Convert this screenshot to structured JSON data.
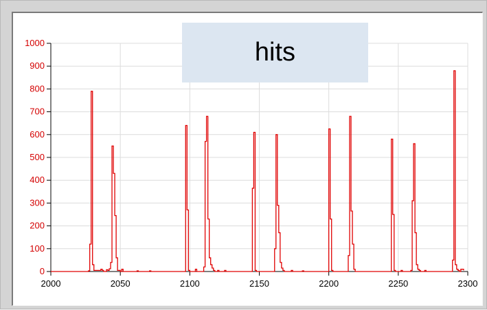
{
  "window": {
    "chart_title": "",
    "overlay_label": "hits"
  },
  "chart_data": {
    "type": "line",
    "title": "",
    "xlabel": "",
    "ylabel": "",
    "xlim": [
      2000,
      2300
    ],
    "ylim": [
      0,
      1000
    ],
    "xticks": [
      2000,
      2050,
      2100,
      2150,
      2200,
      2250,
      2300
    ],
    "yticks": [
      0,
      100,
      200,
      300,
      400,
      500,
      600,
      700,
      800,
      900,
      1000
    ],
    "grid": true,
    "step": true,
    "series": [
      {
        "color": "#e00000",
        "points": [
          [
            2000,
            0
          ],
          [
            2026,
            0
          ],
          [
            2027,
            3
          ],
          [
            2028,
            120
          ],
          [
            2029,
            790
          ],
          [
            2030,
            30
          ],
          [
            2031,
            5
          ],
          [
            2033,
            5
          ],
          [
            2035,
            5
          ],
          [
            2036,
            10
          ],
          [
            2037,
            5
          ],
          [
            2038,
            0
          ],
          [
            2040,
            8
          ],
          [
            2041,
            5
          ],
          [
            2042,
            12
          ],
          [
            2043,
            40
          ],
          [
            2044,
            550
          ],
          [
            2045,
            430
          ],
          [
            2046,
            245
          ],
          [
            2047,
            60
          ],
          [
            2048,
            5
          ],
          [
            2050,
            0
          ],
          [
            2051,
            10
          ],
          [
            2052,
            0
          ],
          [
            2062,
            3
          ],
          [
            2063,
            0
          ],
          [
            2071,
            3
          ],
          [
            2072,
            0
          ],
          [
            2096,
            0
          ],
          [
            2097,
            640
          ],
          [
            2098,
            270
          ],
          [
            2099,
            5
          ],
          [
            2100,
            0
          ],
          [
            2103,
            0
          ],
          [
            2104,
            10
          ],
          [
            2105,
            0
          ],
          [
            2109,
            0
          ],
          [
            2110,
            20
          ],
          [
            2111,
            570
          ],
          [
            2112,
            680
          ],
          [
            2113,
            230
          ],
          [
            2114,
            60
          ],
          [
            2115,
            30
          ],
          [
            2116,
            15
          ],
          [
            2117,
            5
          ],
          [
            2118,
            0
          ],
          [
            2120,
            5
          ],
          [
            2121,
            0
          ],
          [
            2124,
            0
          ],
          [
            2125,
            5
          ],
          [
            2126,
            0
          ],
          [
            2144,
            0
          ],
          [
            2145,
            365
          ],
          [
            2146,
            610
          ],
          [
            2147,
            5
          ],
          [
            2148,
            0
          ],
          [
            2160,
            0
          ],
          [
            2161,
            100
          ],
          [
            2162,
            600
          ],
          [
            2163,
            290
          ],
          [
            2164,
            170
          ],
          [
            2165,
            40
          ],
          [
            2166,
            15
          ],
          [
            2167,
            5
          ],
          [
            2168,
            0
          ],
          [
            2172,
            0
          ],
          [
            2173,
            5
          ],
          [
            2174,
            0
          ],
          [
            2180,
            0
          ],
          [
            2181,
            3
          ],
          [
            2182,
            0
          ],
          [
            2199,
            0
          ],
          [
            2200,
            625
          ],
          [
            2201,
            230
          ],
          [
            2202,
            5
          ],
          [
            2203,
            0
          ],
          [
            2213,
            0
          ],
          [
            2214,
            70
          ],
          [
            2215,
            680
          ],
          [
            2216,
            265
          ],
          [
            2217,
            120
          ],
          [
            2218,
            10
          ],
          [
            2219,
            0
          ],
          [
            2244,
            0
          ],
          [
            2245,
            580
          ],
          [
            2246,
            250
          ],
          [
            2247,
            5
          ],
          [
            2248,
            0
          ],
          [
            2251,
            0
          ],
          [
            2252,
            5
          ],
          [
            2253,
            0
          ],
          [
            2258,
            0
          ],
          [
            2259,
            5
          ],
          [
            2260,
            310
          ],
          [
            2261,
            560
          ],
          [
            2262,
            170
          ],
          [
            2263,
            30
          ],
          [
            2264,
            10
          ],
          [
            2265,
            5
          ],
          [
            2266,
            0
          ],
          [
            2268,
            0
          ],
          [
            2269,
            5
          ],
          [
            2270,
            0
          ],
          [
            2288,
            0
          ],
          [
            2289,
            50
          ],
          [
            2290,
            880
          ],
          [
            2291,
            30
          ],
          [
            2292,
            10
          ],
          [
            2293,
            5
          ],
          [
            2294,
            0
          ],
          [
            2295,
            10
          ],
          [
            2296,
            10
          ],
          [
            2297,
            5
          ]
        ]
      }
    ]
  }
}
